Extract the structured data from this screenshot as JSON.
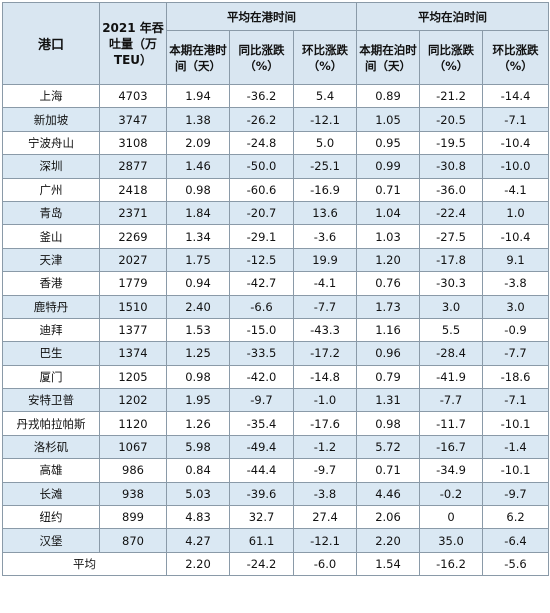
{
  "headers": {
    "port": "港口",
    "throughput": "2021 年吞吐量（万TEU）",
    "in_port_group": "平均在港时间",
    "berth_group": "平均在泊时间",
    "current": "本期在港时间（天）",
    "yoy": "同比涨跌（%）",
    "mom": "环比涨跌（%）",
    "current_berth": "本期在泊时间（天）",
    "yoy_berth": "同比涨跌（%）",
    "mom_berth": "环比涨跌（%）"
  },
  "rows": [
    {
      "port": "上海",
      "tput": "4703",
      "ip": "1.94",
      "ipy": "-36.2",
      "ipm": "5.4",
      "bt": "0.89",
      "bty": "-21.2",
      "btm": "-14.4"
    },
    {
      "port": "新加坡",
      "tput": "3747",
      "ip": "1.38",
      "ipy": "-26.2",
      "ipm": "-12.1",
      "bt": "1.05",
      "bty": "-20.5",
      "btm": "-7.1"
    },
    {
      "port": "宁波舟山",
      "tput": "3108",
      "ip": "2.09",
      "ipy": "-24.8",
      "ipm": "5.0",
      "bt": "0.95",
      "bty": "-19.5",
      "btm": "-10.4"
    },
    {
      "port": "深圳",
      "tput": "2877",
      "ip": "1.46",
      "ipy": "-50.0",
      "ipm": "-25.1",
      "bt": "0.99",
      "bty": "-30.8",
      "btm": "-10.0"
    },
    {
      "port": "广州",
      "tput": "2418",
      "ip": "0.98",
      "ipy": "-60.6",
      "ipm": "-16.9",
      "bt": "0.71",
      "bty": "-36.0",
      "btm": "-4.1"
    },
    {
      "port": "青岛",
      "tput": "2371",
      "ip": "1.84",
      "ipy": "-20.7",
      "ipm": "13.6",
      "bt": "1.04",
      "bty": "-22.4",
      "btm": "1.0"
    },
    {
      "port": "釜山",
      "tput": "2269",
      "ip": "1.34",
      "ipy": "-29.1",
      "ipm": "-3.6",
      "bt": "1.03",
      "bty": "-27.5",
      "btm": "-10.4"
    },
    {
      "port": "天津",
      "tput": "2027",
      "ip": "1.75",
      "ipy": "-12.5",
      "ipm": "19.9",
      "bt": "1.20",
      "bty": "-17.8",
      "btm": "9.1"
    },
    {
      "port": "香港",
      "tput": "1779",
      "ip": "0.94",
      "ipy": "-42.7",
      "ipm": "-4.1",
      "bt": "0.76",
      "bty": "-30.3",
      "btm": "-3.8"
    },
    {
      "port": "鹿特丹",
      "tput": "1510",
      "ip": "2.40",
      "ipy": "-6.6",
      "ipm": "-7.7",
      "bt": "1.73",
      "bty": "3.0",
      "btm": "3.0"
    },
    {
      "port": "迪拜",
      "tput": "1377",
      "ip": "1.53",
      "ipy": "-15.0",
      "ipm": "-43.3",
      "bt": "1.16",
      "bty": "5.5",
      "btm": "-0.9"
    },
    {
      "port": "巴生",
      "tput": "1374",
      "ip": "1.25",
      "ipy": "-33.5",
      "ipm": "-17.2",
      "bt": "0.96",
      "bty": "-28.4",
      "btm": "-7.7"
    },
    {
      "port": "厦门",
      "tput": "1205",
      "ip": "0.98",
      "ipy": "-42.0",
      "ipm": "-14.8",
      "bt": "0.79",
      "bty": "-41.9",
      "btm": "-18.6"
    },
    {
      "port": "安特卫普",
      "tput": "1202",
      "ip": "1.95",
      "ipy": "-9.7",
      "ipm": "-1.0",
      "bt": "1.31",
      "bty": "-7.7",
      "btm": "-7.1"
    },
    {
      "port": "丹戎帕拉帕斯",
      "tput": "1120",
      "ip": "1.26",
      "ipy": "-35.4",
      "ipm": "-17.6",
      "bt": "0.98",
      "bty": "-11.7",
      "btm": "-10.1"
    },
    {
      "port": "洛杉矶",
      "tput": "1067",
      "ip": "5.98",
      "ipy": "-49.4",
      "ipm": "-1.2",
      "bt": "5.72",
      "bty": "-16.7",
      "btm": "-1.4"
    },
    {
      "port": "高雄",
      "tput": "986",
      "ip": "0.84",
      "ipy": "-44.4",
      "ipm": "-9.7",
      "bt": "0.71",
      "bty": "-34.9",
      "btm": "-10.1"
    },
    {
      "port": "长滩",
      "tput": "938",
      "ip": "5.03",
      "ipy": "-39.6",
      "ipm": "-3.8",
      "bt": "4.46",
      "bty": "-0.2",
      "btm": "-9.7"
    },
    {
      "port": "纽约",
      "tput": "899",
      "ip": "4.83",
      "ipy": "32.7",
      "ipm": "27.4",
      "bt": "2.06",
      "bty": "0",
      "btm": "6.2"
    },
    {
      "port": "汉堡",
      "tput": "870",
      "ip": "4.27",
      "ipy": "61.1",
      "ipm": "-12.1",
      "bt": "2.20",
      "bty": "35.0",
      "btm": "-6.4"
    }
  ],
  "average": {
    "label": "平均",
    "ip": "2.20",
    "ipy": "-24.2",
    "ipm": "-6.0",
    "bt": "1.54",
    "bty": "-16.2",
    "btm": "-5.6"
  }
}
